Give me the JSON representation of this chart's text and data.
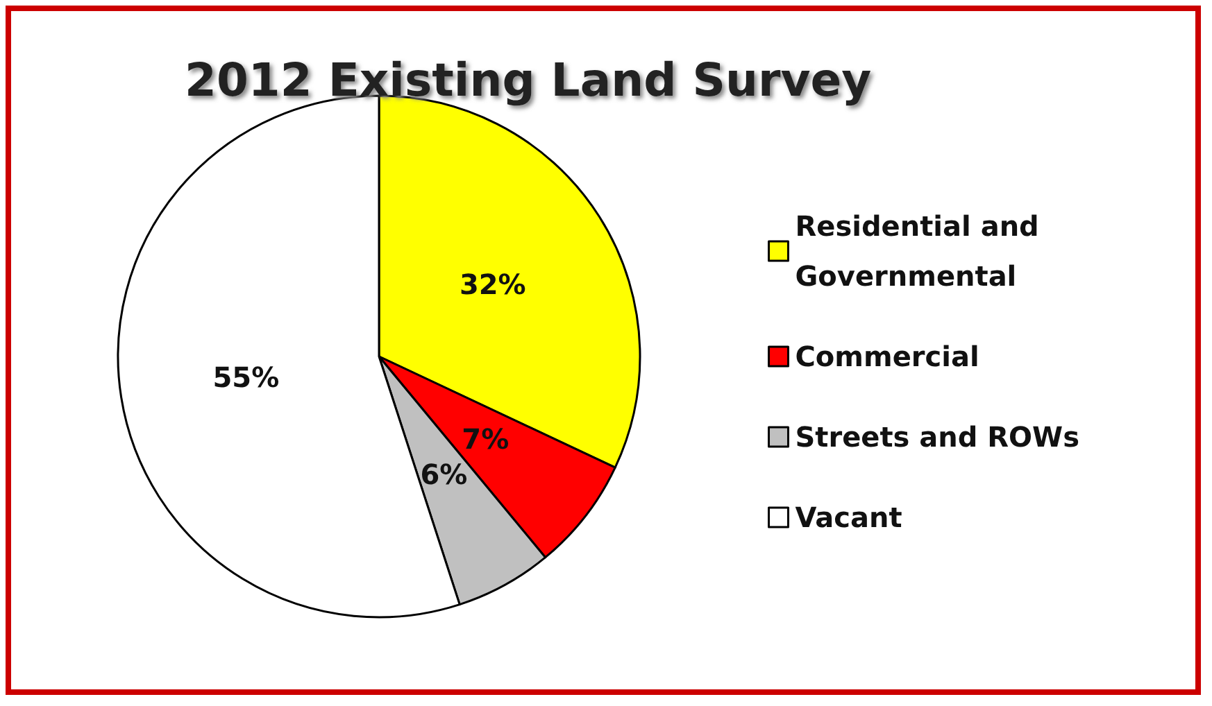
{
  "chart_data": {
    "type": "pie",
    "title": "2012 Existing Land Survey",
    "categories": [
      "Residential and Governmental",
      "Commercial",
      "Streets and ROWs",
      "Vacant"
    ],
    "values": [
      32,
      7,
      6,
      55
    ],
    "colors": [
      "#ffff00",
      "#ff0000",
      "#c0c0c0",
      "#ffffff"
    ],
    "value_labels": [
      "32%",
      "7%",
      "6%",
      "55%"
    ],
    "legend": "right"
  }
}
